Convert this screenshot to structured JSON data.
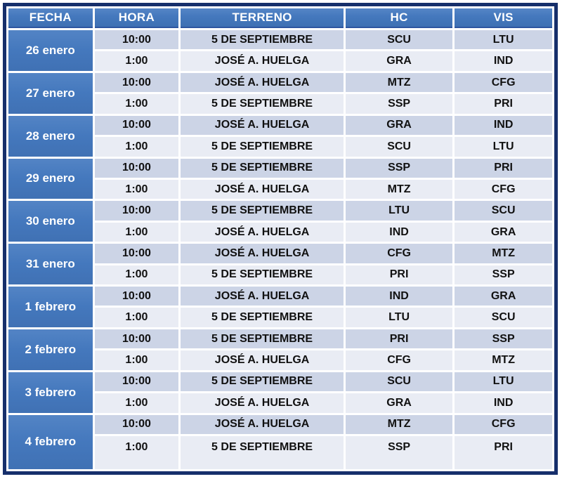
{
  "colors": {
    "outer_border": "#162f6b",
    "header_blue": "#4478bd",
    "date_cell_blue": "#4478bd",
    "band_dark": "#ccd4e6",
    "band_light": "#e9ecf4",
    "grid_white": "#ffffff",
    "header_text": "#ffffff",
    "data_text": "#111111"
  },
  "table": {
    "columns": [
      {
        "key": "fecha",
        "label": "FECHA"
      },
      {
        "key": "hora",
        "label": "HORA"
      },
      {
        "key": "terreno",
        "label": "TERRENO"
      },
      {
        "key": "hc",
        "label": "HC"
      },
      {
        "key": "vis",
        "label": "VIS"
      }
    ],
    "groups": [
      {
        "date": "26 enero",
        "rows": [
          {
            "hora": "10:00",
            "terreno": "5 DE SEPTIEMBRE",
            "hc": "SCU",
            "vis": "LTU"
          },
          {
            "hora": "1:00",
            "terreno": "JOSÉ A. HUELGA",
            "hc": "GRA",
            "vis": "IND"
          }
        ]
      },
      {
        "date": "27 enero",
        "rows": [
          {
            "hora": "10:00",
            "terreno": "JOSÉ A. HUELGA",
            "hc": "MTZ",
            "vis": "CFG"
          },
          {
            "hora": "1:00",
            "terreno": "5 DE SEPTIEMBRE",
            "hc": "SSP",
            "vis": "PRI"
          }
        ]
      },
      {
        "date": "28 enero",
        "rows": [
          {
            "hora": "10:00",
            "terreno": "JOSÉ A. HUELGA",
            "hc": "GRA",
            "vis": "IND"
          },
          {
            "hora": "1:00",
            "terreno": "5 DE SEPTIEMBRE",
            "hc": "SCU",
            "vis": "LTU"
          }
        ]
      },
      {
        "date": "29 enero",
        "rows": [
          {
            "hora": "10:00",
            "terreno": "5 DE SEPTIEMBRE",
            "hc": "SSP",
            "vis": "PRI"
          },
          {
            "hora": "1:00",
            "terreno": "JOSÉ A. HUELGA",
            "hc": "MTZ",
            "vis": "CFG"
          }
        ]
      },
      {
        "date": "30 enero",
        "rows": [
          {
            "hora": "10:00",
            "terreno": "5 DE SEPTIEMBRE",
            "hc": "LTU",
            "vis": "SCU"
          },
          {
            "hora": "1:00",
            "terreno": "JOSÉ A. HUELGA",
            "hc": "IND",
            "vis": "GRA"
          }
        ]
      },
      {
        "date": "31 enero",
        "rows": [
          {
            "hora": "10:00",
            "terreno": "JOSÉ A. HUELGA",
            "hc": "CFG",
            "vis": "MTZ"
          },
          {
            "hora": "1:00",
            "terreno": "5 DE SEPTIEMBRE",
            "hc": "PRI",
            "vis": "SSP"
          }
        ]
      },
      {
        "date": "1 febrero",
        "rows": [
          {
            "hora": "10:00",
            "terreno": "JOSÉ A. HUELGA",
            "hc": "IND",
            "vis": "GRA"
          },
          {
            "hora": "1:00",
            "terreno": "5 DE SEPTIEMBRE",
            "hc": "LTU",
            "vis": "SCU"
          }
        ]
      },
      {
        "date": "2 febrero",
        "rows": [
          {
            "hora": "10:00",
            "terreno": "5 DE SEPTIEMBRE",
            "hc": "PRI",
            "vis": "SSP"
          },
          {
            "hora": "1:00",
            "terreno": "JOSÉ A. HUELGA",
            "hc": "CFG",
            "vis": "MTZ"
          }
        ]
      },
      {
        "date": "3 febrero",
        "rows": [
          {
            "hora": "10:00",
            "terreno": "5 DE SEPTIEMBRE",
            "hc": "SCU",
            "vis": "LTU"
          },
          {
            "hora": "1:00",
            "terreno": "JOSÉ A. HUELGA",
            "hc": "GRA",
            "vis": "IND"
          }
        ]
      },
      {
        "date": "4 febrero",
        "rows": [
          {
            "hora": "10:00",
            "terreno": "JOSÉ A. HUELGA",
            "hc": "MTZ",
            "vis": "CFG"
          },
          {
            "hora": "1:00",
            "terreno": "5 DE SEPTIEMBRE",
            "hc": "SSP",
            "vis": "PRI"
          }
        ]
      }
    ]
  }
}
